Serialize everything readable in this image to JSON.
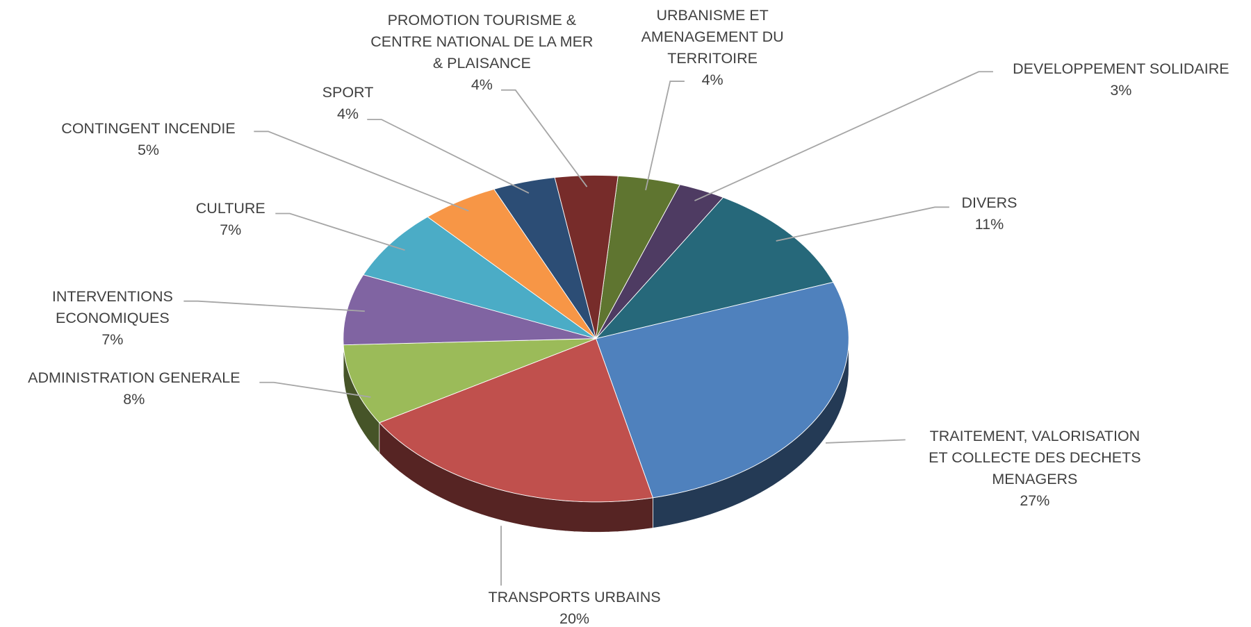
{
  "chart_data": {
    "type": "pie",
    "categories": [
      "URBANISME ET\nAMENAGEMENT DU\nTERRITOIRE",
      "DEVELOPPEMENT SOLIDAIRE",
      "DIVERS",
      "TRAITEMENT, VALORISATION\nET COLLECTE DES DECHETS\nMENAGERS",
      "TRANSPORTS URBAINS",
      "ADMINISTRATION GENERALE",
      "INTERVENTIONS\nECONOMIQUES",
      "CULTURE",
      "CONTINGENT INCENDIE",
      "SPORT",
      "PROMOTION TOURISME &\nCENTRE NATIONAL DE LA MER\n& PLAISANCE"
    ],
    "values": [
      4,
      3,
      11,
      27,
      20,
      8,
      7,
      7,
      5,
      4,
      4
    ],
    "value_labels": [
      "4%",
      "3%",
      "11%",
      "27%",
      "20%",
      "8%",
      "7%",
      "7%",
      "5%",
      "4%",
      "4%"
    ],
    "colors": [
      "#5f7530",
      "#4e3b62",
      "#26687a",
      "#4f81bd",
      "#c0504d",
      "#9bbb59",
      "#8064a2",
      "#4bacc6",
      "#f79646",
      "#2c4d75",
      "#772c2a"
    ]
  }
}
